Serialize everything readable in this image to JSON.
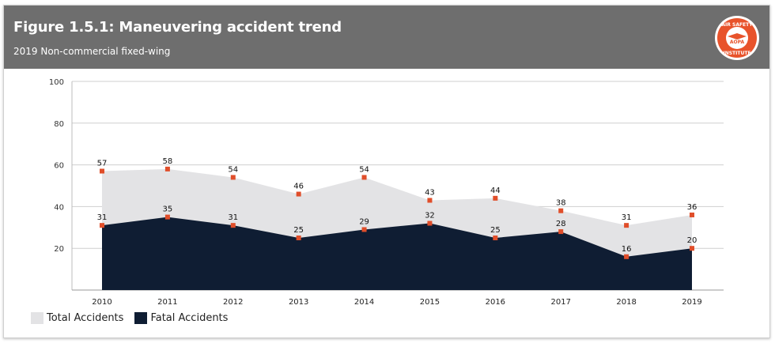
{
  "header": {
    "title": "Figure 1.5.1: Maneuvering accident trend",
    "subtitle": "2019 Non-commercial fixed-wing",
    "logo": {
      "icon": "aopa-air-safety-institute-logo",
      "text_top": "AIR SAFETY",
      "text_center": "AOPA",
      "text_bottom": "INSTITUTE",
      "colors": {
        "ring": "#e8532b",
        "center": "#ffffff"
      }
    }
  },
  "chart_data": {
    "type": "area",
    "title": "",
    "xlabel": "",
    "ylabel": "",
    "x": [
      "2010",
      "2011",
      "2012",
      "2013",
      "2014",
      "2015",
      "2016",
      "2017",
      "2018",
      "2019"
    ],
    "ylim": [
      0,
      100
    ],
    "yticks": [
      20,
      40,
      60,
      80,
      100
    ],
    "grid": true,
    "legend_position": "bottom-left",
    "series": [
      {
        "name": "Total Accidents",
        "values": [
          57,
          58,
          54,
          46,
          54,
          43,
          44,
          38,
          31,
          36
        ],
        "color": "#e3e3e5"
      },
      {
        "name": "Fatal Accidents",
        "values": [
          31,
          35,
          31,
          25,
          29,
          32,
          25,
          28,
          16,
          20
        ],
        "color": "#0f1d33"
      }
    ],
    "marker_color": "#e04e2a"
  }
}
